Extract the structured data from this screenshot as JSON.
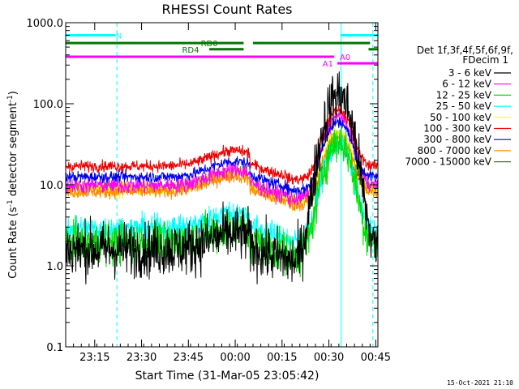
{
  "chart_data": {
    "type": "line",
    "title": "RHESSI Count Rates",
    "xlabel": "Start Time (31-Mar-05 23:05:42)",
    "ylabel": "Count Rate (s⁻¹ detector segment⁻¹)",
    "ylabel_parts": {
      "main": "Count Rate (s",
      "sup1": "-1",
      "mid": " detector segment",
      "sup2": "-1",
      "end": ")"
    },
    "y_scale": "log",
    "ylim": [
      0.1,
      1000
    ],
    "xlim_minutes_after_start": [
      0,
      100
    ],
    "x_tick_labels": [
      "23:15",
      "23:30",
      "23:45",
      "00:00",
      "00:15",
      "00:30",
      "00:45"
    ],
    "x_tick_minutes_after_start": [
      9.3,
      24.3,
      39.3,
      54.3,
      69.3,
      84.3,
      99.3
    ],
    "y_tick_labels": [
      "0.1",
      "1.0",
      "10.0",
      "100.0",
      "1000.0"
    ],
    "y_tick_values": [
      0.1,
      1,
      10,
      100,
      1000
    ],
    "grid": false,
    "legend_header": [
      "Det 1f,3f,4f,5f,6f,9f,",
      "FDecim 1"
    ],
    "legend_position": "right",
    "timestamp": "15-Oct-2021 21:10",
    "series": [
      {
        "name": "3 - 6 keV",
        "color": "#000000",
        "base": 1.6,
        "peak": 130,
        "noise": 0.34
      },
      {
        "name": "6 - 12 keV",
        "color": "#ff00ff",
        "base": 9.8,
        "peak": 70,
        "noise": 0.1
      },
      {
        "name": "12 - 25 keV",
        "color": "#00dd00",
        "base": 1.9,
        "peak": 35,
        "noise": 0.26
      },
      {
        "name": "25 - 50 keV",
        "color": "#00ffff",
        "base": 2.9,
        "peak": 32,
        "noise": 0.16
      },
      {
        "name": "50 - 100 keV",
        "color": "#ffff00",
        "base": 9.0,
        "peak": 45,
        "noise": 0.1
      },
      {
        "name": "100 - 300 keV",
        "color": "#ee0000",
        "base": 17.0,
        "peak": 85,
        "noise": 0.07
      },
      {
        "name": "300 - 800 keV",
        "color": "#0000ee",
        "base": 12.5,
        "peak": 60,
        "noise": 0.07
      },
      {
        "name": "800 - 7000 keV",
        "color": "#ff8800",
        "base": 8.2,
        "peak": 40,
        "noise": 0.08
      },
      {
        "name": "7000 - 15000 keV",
        "color": "#556b2f",
        "base": 9.5,
        "peak": 30,
        "noise": 0.06
      }
    ],
    "shape": {
      "bump_center_min": 54,
      "bump_width_min": 10,
      "bump_gain": 0.55,
      "flare_peak_min": 87.5,
      "flare_rise_min": 3.6,
      "flare_decay_min": 3.2,
      "drop_min": 59,
      "drop_factor": 0.75,
      "recover_min": 81,
      "drop_min2": 71
    },
    "attenuator_flags": [
      {
        "label": "N",
        "color": "#00ffff",
        "segments": [
          [
            0,
            16
          ],
          [
            88,
            100
          ]
        ],
        "level": 700
      },
      {
        "label": "RD0",
        "color": "#007700",
        "segments": [
          [
            0,
            57
          ],
          [
            60,
            97.5
          ]
        ],
        "level": 560,
        "label_at": 46
      },
      {
        "label": "RD4",
        "color": "#007700",
        "segments": [
          [
            46,
            57
          ],
          [
            97,
            100
          ]
        ],
        "level": 470,
        "label_at": 40
      },
      {
        "label": "A0",
        "color": "#ff00ff",
        "segments": [
          [
            0,
            86
          ]
        ],
        "level": 380,
        "label_at": 89.5
      },
      {
        "label": "A1",
        "color": "#ff00ff",
        "segments": [
          [
            87,
            100
          ]
        ],
        "level": 315,
        "label_at": 84
      }
    ],
    "vertical_lines": [
      {
        "at": 0.0,
        "color": "#00ffff",
        "style": "solid"
      },
      {
        "at": 16.4,
        "color": "#00ffff",
        "style": "dashed"
      },
      {
        "at": 88.2,
        "color": "#00ffff",
        "style": "solid"
      },
      {
        "at": 98.4,
        "color": "#00ffff",
        "style": "dashed"
      }
    ]
  }
}
